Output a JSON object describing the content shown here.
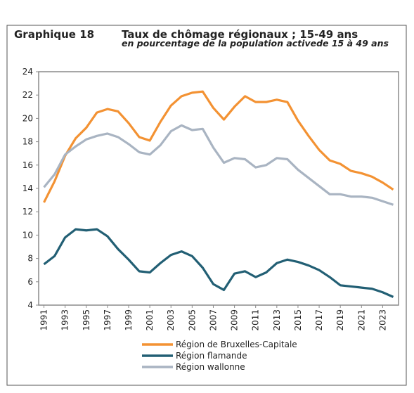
{
  "chart_data": {
    "type": "line",
    "chart_number": "Graphique 18",
    "title": "Taux de chômage régionaux ; 15-49 ans",
    "subtitle": "en pourcentage de la population activede 15 à 49 ans",
    "x": [
      1991,
      1992,
      1993,
      1994,
      1995,
      1996,
      1997,
      1998,
      1999,
      2000,
      2001,
      2002,
      2003,
      2004,
      2005,
      2006,
      2007,
      2008,
      2009,
      2010,
      2011,
      2012,
      2013,
      2014,
      2015,
      2016,
      2017,
      2018,
      2019,
      2020,
      2021,
      2022,
      2023,
      2024
    ],
    "xlim": [
      1990.5,
      2024.5
    ],
    "xticks": [
      1991,
      1993,
      1995,
      1997,
      1999,
      2001,
      2003,
      2005,
      2007,
      2009,
      2011,
      2013,
      2015,
      2017,
      2019,
      2021,
      2023
    ],
    "ylim": [
      4,
      24
    ],
    "yticks": [
      4,
      6,
      8,
      10,
      12,
      14,
      16,
      18,
      20,
      22,
      24
    ],
    "series": [
      {
        "name": "Région de Bruxelles-Capitale",
        "color": "#f39233",
        "values": [
          12.8,
          14.6,
          16.8,
          18.3,
          19.2,
          20.5,
          20.8,
          20.6,
          19.6,
          18.4,
          18.1,
          19.7,
          21.1,
          21.9,
          22.2,
          22.3,
          20.9,
          19.9,
          21.0,
          21.9,
          21.4,
          21.4,
          21.6,
          21.4,
          19.8,
          18.5,
          17.3,
          16.4,
          16.1,
          15.5,
          15.3,
          15.0,
          14.5,
          13.9
        ]
      },
      {
        "name": "Région flamande",
        "color": "#225f74",
        "values": [
          7.5,
          8.2,
          9.8,
          10.5,
          10.4,
          10.5,
          9.9,
          8.8,
          7.9,
          6.9,
          6.8,
          7.6,
          8.3,
          8.6,
          8.2,
          7.2,
          5.8,
          5.3,
          6.7,
          6.9,
          6.4,
          6.8,
          7.6,
          7.9,
          7.7,
          7.4,
          7.0,
          6.4,
          5.7,
          5.6,
          5.5,
          5.4,
          5.1,
          4.7
        ]
      },
      {
        "name": "Région wallonne",
        "color": "#a9b4c2",
        "values": [
          14.1,
          15.2,
          16.9,
          17.6,
          18.2,
          18.5,
          18.7,
          18.4,
          17.8,
          17.1,
          16.9,
          17.7,
          18.9,
          19.4,
          19.0,
          19.1,
          17.5,
          16.2,
          16.6,
          16.5,
          15.8,
          16.0,
          16.6,
          16.5,
          15.6,
          14.9,
          14.2,
          13.5,
          13.5,
          13.3,
          13.3,
          13.2,
          12.9,
          12.6
        ]
      }
    ]
  }
}
